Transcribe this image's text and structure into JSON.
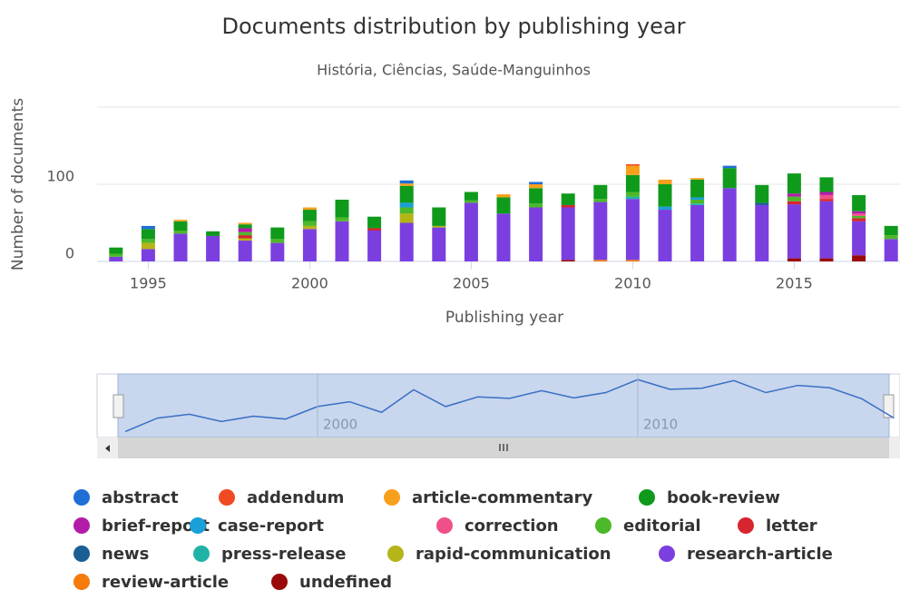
{
  "chart_data": {
    "type": "bar",
    "stacked": true,
    "title": "Documents distribution by publishing year",
    "subtitle": "História, Ciências, Saúde-Manguinhos",
    "y_label": "Number of documents",
    "x_label": "Publishing year",
    "x": [
      1994,
      1995,
      1996,
      1997,
      1998,
      1999,
      2000,
      2001,
      2002,
      2003,
      2004,
      2005,
      2006,
      2007,
      2008,
      2009,
      2010,
      2011,
      2012,
      2013,
      2014,
      2015,
      2016,
      2017,
      2018
    ],
    "xlim": [
      1993.5,
      2018.5
    ],
    "xticks": [
      1995,
      2000,
      2005,
      2010,
      2015
    ],
    "ylim": [
      0,
      200
    ],
    "yticks": [
      0,
      100
    ],
    "grid": true,
    "legend": "bottom",
    "navigator": {
      "xticks": [
        2000,
        2010
      ]
    },
    "series": [
      {
        "name": "abstract",
        "color": "#1f6fd6",
        "values": [
          0,
          4,
          0,
          0,
          0,
          0,
          0,
          0,
          0,
          4,
          0,
          0,
          0,
          3,
          0,
          0,
          0,
          0,
          0,
          3,
          0,
          0,
          0,
          0,
          0
        ]
      },
      {
        "name": "addendum",
        "color": "#f04a22",
        "values": [
          0,
          0,
          0,
          0,
          0,
          0,
          0,
          0,
          0,
          0,
          0,
          0,
          0,
          0,
          0,
          0,
          2,
          0,
          0,
          0,
          0,
          0,
          0,
          0,
          0
        ]
      },
      {
        "name": "article-commentary",
        "color": "#f8a01c",
        "values": [
          0,
          0,
          2,
          0,
          2,
          0,
          3,
          0,
          0,
          3,
          0,
          0,
          4,
          5,
          0,
          0,
          12,
          6,
          2,
          0,
          0,
          0,
          0,
          0,
          0
        ]
      },
      {
        "name": "book-review",
        "color": "#0f9a1c",
        "values": [
          8,
          13,
          12,
          6,
          5,
          15,
          15,
          23,
          15,
          22,
          24,
          11,
          21,
          20,
          15,
          18,
          22,
          29,
          23,
          26,
          23,
          26,
          19,
          21,
          12
        ]
      },
      {
        "name": "brief-report",
        "color": "#b21ca8",
        "values": [
          0,
          0,
          0,
          0,
          5,
          0,
          0,
          0,
          0,
          0,
          0,
          0,
          0,
          0,
          0,
          0,
          0,
          0,
          0,
          0,
          0,
          4,
          4,
          3,
          0
        ]
      },
      {
        "name": "case-report",
        "color": "#1aa0d8",
        "values": [
          0,
          0,
          0,
          0,
          0,
          0,
          0,
          0,
          0,
          6,
          0,
          0,
          0,
          0,
          0,
          0,
          0,
          4,
          3,
          0,
          0,
          0,
          0,
          0,
          0
        ]
      },
      {
        "name": "correction",
        "color": "#f05089",
        "values": [
          0,
          0,
          0,
          0,
          0,
          0,
          0,
          0,
          0,
          0,
          0,
          0,
          0,
          0,
          0,
          0,
          0,
          0,
          0,
          0,
          0,
          0,
          5,
          3,
          0
        ]
      },
      {
        "name": "editorial",
        "color": "#4db82a",
        "values": [
          4,
          5,
          4,
          0,
          4,
          5,
          6,
          5,
          0,
          8,
          0,
          3,
          0,
          5,
          0,
          4,
          6,
          0,
          5,
          0,
          0,
          6,
          0,
          3,
          5
        ]
      },
      {
        "name": "letter",
        "color": "#d6252e",
        "values": [
          0,
          0,
          0,
          0,
          4,
          0,
          0,
          0,
          3,
          0,
          0,
          0,
          0,
          0,
          3,
          0,
          0,
          0,
          0,
          0,
          0,
          4,
          3,
          4,
          0
        ]
      },
      {
        "name": "news",
        "color": "#1a5e96",
        "values": [
          0,
          0,
          0,
          0,
          0,
          0,
          0,
          0,
          0,
          0,
          0,
          0,
          0,
          0,
          0,
          0,
          0,
          0,
          0,
          0,
          3,
          0,
          0,
          0,
          0
        ]
      },
      {
        "name": "press-release",
        "color": "#1fb3a8",
        "values": [
          0,
          0,
          0,
          0,
          0,
          0,
          0,
          0,
          0,
          0,
          0,
          0,
          0,
          0,
          0,
          0,
          3,
          0,
          2,
          0,
          0,
          0,
          0,
          0,
          0
        ]
      },
      {
        "name": "rapid-communication",
        "color": "#b5b418",
        "values": [
          0,
          8,
          0,
          0,
          3,
          0,
          4,
          0,
          0,
          12,
          2,
          0,
          0,
          0,
          0,
          0,
          0,
          0,
          0,
          0,
          0,
          0,
          0,
          0,
          0
        ]
      },
      {
        "name": "research-article",
        "color": "#7b3fe0",
        "values": [
          6,
          16,
          36,
          33,
          27,
          24,
          42,
          52,
          40,
          50,
          44,
          76,
          62,
          70,
          68,
          75,
          79,
          67,
          73,
          95,
          73,
          70,
          74,
          44,
          29
        ]
      },
      {
        "name": "review-article",
        "color": "#f57c0c",
        "values": [
          0,
          0,
          0,
          0,
          0,
          0,
          0,
          0,
          0,
          0,
          0,
          0,
          0,
          0,
          0,
          2,
          2,
          0,
          0,
          0,
          0,
          0,
          0,
          0,
          0
        ]
      },
      {
        "name": "undefined",
        "color": "#9a0a0a",
        "values": [
          0,
          0,
          0,
          0,
          0,
          0,
          0,
          0,
          0,
          0,
          0,
          0,
          0,
          0,
          2,
          0,
          0,
          0,
          0,
          0,
          0,
          4,
          4,
          8,
          0
        ]
      }
    ]
  }
}
